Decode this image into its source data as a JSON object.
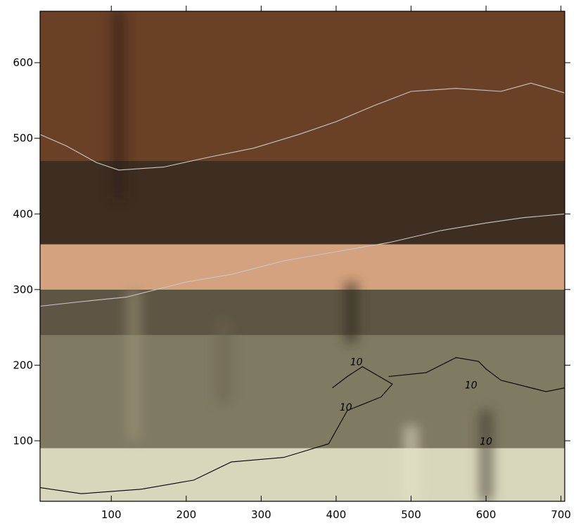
{
  "chart_data": {
    "type": "heatmap",
    "title": "",
    "xlabel": "",
    "ylabel": "",
    "xlim": [
      5,
      705
    ],
    "ylim": [
      20,
      668
    ],
    "xticks": [
      100,
      200,
      300,
      400,
      500,
      600,
      700
    ],
    "yticks": [
      100,
      200,
      300,
      400,
      500,
      600
    ],
    "grid": false,
    "colormap": [
      "#d9d7bb",
      "#c6c3a6",
      "#7f7a62",
      "#57503f",
      "#3e2e22",
      "#d4a27e",
      "#6a4027"
    ],
    "color_bands": [
      {
        "y_range": [
          20,
          90
        ],
        "color": "#d9d7bb"
      },
      {
        "y_range": [
          90,
          240
        ],
        "color": "#7f7a62"
      },
      {
        "y_range": [
          240,
          300
        ],
        "color": "#5e5644"
      },
      {
        "y_range": [
          300,
          360
        ],
        "color": "#d4a27e"
      },
      {
        "y_range": [
          360,
          470
        ],
        "color": "#3e2e22"
      },
      {
        "y_range": [
          470,
          668
        ],
        "color": "#6a4027"
      }
    ],
    "contours": [
      {
        "level": 10,
        "label": "10",
        "color": "#000000",
        "labels_at": [
          [
            427,
            200
          ],
          [
            580,
            169
          ],
          [
            413,
            140
          ],
          [
            600,
            95
          ]
        ],
        "points": [
          [
            5,
            38
          ],
          [
            60,
            30
          ],
          [
            140,
            36
          ],
          [
            210,
            48
          ],
          [
            260,
            72
          ],
          [
            330,
            78
          ],
          [
            390,
            96
          ],
          [
            415,
            140
          ],
          [
            460,
            158
          ],
          [
            475,
            175
          ],
          [
            435,
            198
          ],
          [
            415,
            185
          ],
          [
            395,
            170
          ]
        ]
      },
      {
        "level": 10,
        "label": "",
        "color": "#000000",
        "points": [
          [
            470,
            185
          ],
          [
            520,
            190
          ],
          [
            560,
            210
          ],
          [
            590,
            205
          ],
          [
            600,
            195
          ],
          [
            620,
            180
          ],
          [
            680,
            165
          ],
          [
            705,
            170
          ]
        ]
      },
      {
        "level": null,
        "label": "",
        "color": "#c8c8c8",
        "points": [
          [
            5,
            278
          ],
          [
            60,
            284
          ],
          [
            120,
            290
          ],
          [
            200,
            310
          ],
          [
            260,
            320
          ],
          [
            330,
            338
          ],
          [
            400,
            350
          ],
          [
            470,
            362
          ],
          [
            540,
            378
          ],
          [
            600,
            388
          ],
          [
            650,
            395
          ],
          [
            705,
            400
          ]
        ]
      },
      {
        "level": null,
        "label": "",
        "color": "#c8c8c8",
        "points": [
          [
            5,
            505
          ],
          [
            40,
            490
          ],
          [
            80,
            468
          ],
          [
            110,
            458
          ],
          [
            170,
            462
          ],
          [
            230,
            475
          ],
          [
            290,
            487
          ],
          [
            350,
            505
          ],
          [
            400,
            522
          ],
          [
            450,
            543
          ],
          [
            500,
            562
          ],
          [
            560,
            566
          ],
          [
            620,
            562
          ],
          [
            660,
            573
          ],
          [
            705,
            560
          ]
        ]
      }
    ]
  }
}
